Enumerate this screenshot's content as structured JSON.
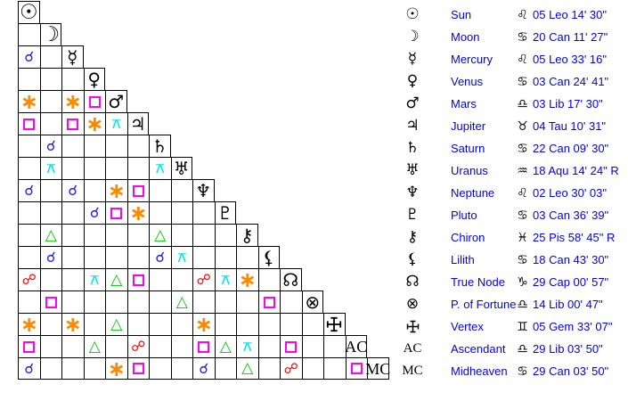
{
  "chart_data": {
    "type": "table",
    "title": "Astrological aspect grid with planet positions",
    "legend_position": "right",
    "planets": [
      {
        "id": "sun",
        "glyph": "☉",
        "name": "Sun",
        "sign_glyph": "♌",
        "sign": "Leo",
        "position": "05 Leo 14' 30\""
      },
      {
        "id": "moon",
        "glyph": "☽",
        "name": "Moon",
        "sign_glyph": "♋",
        "sign": "Cancer",
        "position": "20 Can 11' 27\""
      },
      {
        "id": "mercury",
        "glyph": "☿",
        "name": "Mercury",
        "sign_glyph": "♌",
        "sign": "Leo",
        "position": "05 Leo 33' 16\""
      },
      {
        "id": "venus",
        "glyph": "♀",
        "name": "Venus",
        "sign_glyph": "♋",
        "sign": "Cancer",
        "position": "03 Can 24' 41\""
      },
      {
        "id": "mars",
        "glyph": "♂",
        "name": "Mars",
        "sign_glyph": "♎",
        "sign": "Libra",
        "position": "03 Lib 17' 30\""
      },
      {
        "id": "jupiter",
        "glyph": "♃",
        "name": "Jupiter",
        "sign_glyph": "♉",
        "sign": "Taurus",
        "position": "04 Tau 10' 31\""
      },
      {
        "id": "saturn",
        "glyph": "♄",
        "name": "Saturn",
        "sign_glyph": "♋",
        "sign": "Cancer",
        "position": "22 Can 09' 30\""
      },
      {
        "id": "uranus",
        "glyph": "♅",
        "name": "Uranus",
        "sign_glyph": "♒",
        "sign": "Aquarius",
        "position": "18 Aqu 14' 24\" R"
      },
      {
        "id": "neptune",
        "glyph": "♆",
        "name": "Neptune",
        "sign_glyph": "♌",
        "sign": "Leo",
        "position": "02 Leo 30' 03\""
      },
      {
        "id": "pluto",
        "glyph": "♇",
        "name": "Pluto",
        "sign_glyph": "♋",
        "sign": "Cancer",
        "position": "03 Can 36' 39\""
      },
      {
        "id": "chiron",
        "glyph": "⚷",
        "name": "Chiron",
        "sign_glyph": "♓",
        "sign": "Pisces",
        "position": "25 Pis 58' 45\" R"
      },
      {
        "id": "lilith",
        "glyph": "⚸",
        "name": "Lilith",
        "sign_glyph": "♋",
        "sign": "Cancer",
        "position": "18 Can 43' 30\""
      },
      {
        "id": "true-node",
        "glyph": "☊",
        "name": "True Node",
        "sign_glyph": "♑",
        "sign": "Capricorn",
        "position": "29 Cap 00' 57\""
      },
      {
        "id": "p-of-fortune",
        "glyph": "⊗",
        "name": "P. of Fortune",
        "sign_glyph": "♎",
        "sign": "Libra",
        "position": "14 Lib 00' 47\""
      },
      {
        "id": "vertex",
        "glyph": "vertex-cross",
        "name": "Vertex",
        "sign_glyph": "♊",
        "sign": "Gemini",
        "position": "05 Gem 33' 07\""
      },
      {
        "id": "ascendant",
        "glyph": "AC",
        "name": "Ascendant",
        "sign_glyph": "♎",
        "sign": "Libra",
        "position": "29 Lib 03' 50\""
      },
      {
        "id": "midheaven",
        "glyph": "MC",
        "name": "Midheaven",
        "sign_glyph": "♋",
        "sign": "Cancer",
        "position": "29 Can 03' 50\""
      }
    ],
    "aspect_types": {
      "c": {
        "name": "conjunction",
        "symbol": "☌",
        "color": "#2020ff",
        "size": 16
      },
      "x": {
        "name": "sextile",
        "symbol": "∗",
        "color": "#ff8800",
        "size": 24
      },
      "q": {
        "name": "square",
        "symbol": "□",
        "color": "#ff00ff",
        "size": 16
      },
      "t": {
        "name": "trine",
        "symbol": "△",
        "color": "#00cc00",
        "size": 17
      },
      "o": {
        "name": "opposition",
        "symbol": "☍",
        "color": "#ff0000",
        "size": 16
      },
      "i": {
        "name": "quincunx",
        "symbol": "⚻",
        "color": "#00e5ee",
        "size": 15
      }
    },
    "aspect_matrix": [
      [],
      [
        ""
      ],
      [
        "c",
        ""
      ],
      [
        "",
        "",
        ""
      ],
      [
        "x",
        "",
        "x",
        "q"
      ],
      [
        "q",
        "",
        "q",
        "x",
        "i"
      ],
      [
        "",
        "c",
        "",
        "",
        "",
        ""
      ],
      [
        "",
        "i",
        "",
        "",
        "",
        "",
        "i"
      ],
      [
        "c",
        "",
        "c",
        "",
        "x",
        "q",
        "",
        ""
      ],
      [
        "",
        "",
        "",
        "c",
        "q",
        "x",
        "",
        "",
        ""
      ],
      [
        "",
        "t",
        "",
        "",
        "",
        "",
        "t",
        "",
        "",
        ""
      ],
      [
        "",
        "c",
        "",
        "",
        "",
        "",
        "c",
        "i",
        "",
        "",
        ""
      ],
      [
        "o",
        "",
        "",
        "i",
        "t",
        "q",
        "",
        "",
        "o",
        "i",
        "x",
        ""
      ],
      [
        "",
        "q",
        "",
        "",
        "",
        "",
        "",
        "t",
        "",
        "",
        "",
        "q",
        ""
      ],
      [
        "x",
        "",
        "x",
        "",
        "t",
        "",
        "",
        "",
        "x",
        "",
        "",
        "",
        "",
        ""
      ],
      [
        "q",
        "",
        "",
        "t",
        "",
        "o",
        "",
        "",
        "q",
        "t",
        "i",
        "",
        "q",
        "",
        ""
      ],
      [
        "c",
        "",
        "",
        "",
        "x",
        "q",
        "",
        "",
        "c",
        "",
        "t",
        "",
        "o",
        "",
        "",
        "q"
      ]
    ]
  }
}
